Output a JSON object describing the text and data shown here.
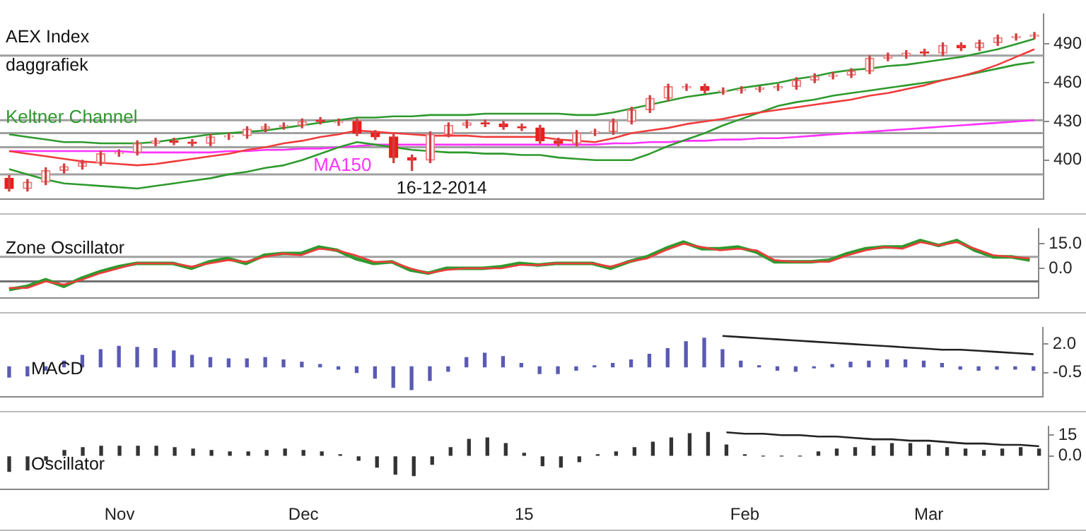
{
  "chart_data": [
    {
      "type": "candlestick",
      "title": "AEX Index",
      "subtitle": "daggrafiek",
      "annotations": [
        "16-12-2014"
      ],
      "categories": [
        null,
        null,
        null,
        null,
        null,
        null,
        null,
        null,
        null,
        null,
        null,
        null,
        null,
        null,
        null,
        null,
        null,
        null,
        null,
        null,
        null,
        null,
        null,
        null,
        null,
        null,
        null,
        null,
        null,
        null,
        null,
        null,
        null,
        null,
        null,
        null,
        null,
        null,
        null,
        null,
        null,
        null,
        null,
        null,
        null,
        null,
        null,
        null,
        null,
        null,
        null,
        null,
        null,
        null,
        null,
        null,
        null
      ],
      "ohlc": [
        [
          386,
          388,
          376,
          378
        ],
        [
          378,
          385,
          376,
          383
        ],
        [
          383,
          394,
          381,
          392
        ],
        [
          392,
          397,
          390,
          395
        ],
        [
          395,
          400,
          393,
          398
        ],
        [
          398,
          407,
          396,
          405
        ],
        [
          405,
          408,
          403,
          406
        ],
        [
          406,
          415,
          404,
          413
        ],
        [
          413,
          417,
          411,
          415
        ],
        [
          415,
          417,
          412,
          414
        ],
        [
          414,
          416,
          411,
          413
        ],
        [
          413,
          420,
          411,
          418
        ],
        [
          418,
          421,
          416,
          419
        ],
        [
          419,
          426,
          417,
          424
        ],
        [
          424,
          428,
          422,
          426
        ],
        [
          426,
          429,
          424,
          427
        ],
        [
          427,
          432,
          425,
          430
        ],
        [
          431,
          433,
          428,
          430
        ],
        [
          429,
          432,
          427,
          430
        ],
        [
          430,
          432,
          419,
          421
        ],
        [
          421,
          423,
          416,
          418
        ],
        [
          418,
          420,
          398,
          402
        ],
        [
          402,
          404,
          392,
          400
        ],
        [
          400,
          422,
          398,
          420
        ],
        [
          420,
          429,
          418,
          427
        ],
        [
          427,
          431,
          425,
          429
        ],
        [
          429,
          431,
          426,
          428
        ],
        [
          428,
          430,
          424,
          426
        ],
        [
          426,
          428,
          423,
          425
        ],
        [
          425,
          427,
          413,
          415
        ],
        [
          415,
          417,
          411,
          413
        ],
        [
          413,
          423,
          411,
          421
        ],
        [
          421,
          424,
          419,
          422
        ],
        [
          422,
          432,
          420,
          430
        ],
        [
          430,
          441,
          428,
          439
        ],
        [
          439,
          450,
          437,
          448
        ],
        [
          448,
          459,
          446,
          457
        ],
        [
          456,
          459,
          454,
          457
        ],
        [
          457,
          459,
          452,
          454
        ],
        [
          453,
          456,
          451,
          454
        ],
        [
          454,
          457,
          452,
          455
        ],
        [
          455,
          457,
          453,
          456
        ],
        [
          456,
          459,
          454,
          457
        ],
        [
          457,
          464,
          455,
          462
        ],
        [
          462,
          467,
          460,
          465
        ],
        [
          465,
          468,
          463,
          466
        ],
        [
          466,
          471,
          464,
          469
        ],
        [
          469,
          481,
          467,
          479
        ],
        [
          479,
          483,
          477,
          481
        ],
        [
          481,
          485,
          479,
          483
        ],
        [
          484,
          486,
          481,
          483
        ],
        [
          483,
          491,
          481,
          489
        ],
        [
          489,
          491,
          485,
          487
        ],
        [
          487,
          493,
          485,
          491
        ],
        [
          491,
          497,
          489,
          495
        ],
        [
          495,
          498,
          493,
          496
        ],
        [
          496,
          499,
          494,
          497
        ]
      ],
      "series": [
        {
          "type": "line",
          "name": "Keltner Channel",
          "color": "#2e9a2e",
          "values": [
            420,
            418,
            416,
            414,
            414,
            413,
            413,
            413,
            414,
            416,
            418,
            420,
            421,
            422,
            423,
            425,
            427,
            429,
            431,
            433,
            433,
            434,
            434,
            435,
            435,
            435,
            436,
            436,
            436,
            436,
            436,
            435,
            435,
            437,
            440,
            443,
            446,
            449,
            451,
            453,
            456,
            458,
            460,
            463,
            465,
            468,
            470,
            471,
            473,
            474,
            476,
            478,
            480,
            483,
            486,
            490,
            494
          ]
        },
        {
          "type": "line",
          "color": "#f03c3c",
          "values": [
            407,
            405,
            403,
            401,
            399,
            398,
            397,
            396,
            397,
            399,
            401,
            403,
            405,
            408,
            410,
            413,
            415,
            418,
            420,
            423,
            422,
            421,
            420,
            419,
            419,
            419,
            418,
            418,
            418,
            418,
            416,
            415,
            414,
            417,
            421,
            423,
            425,
            428,
            430,
            432,
            435,
            437,
            439,
            441,
            443,
            445,
            447,
            450,
            452,
            455,
            458,
            462,
            465,
            469,
            474,
            480,
            486
          ]
        },
        {
          "type": "line",
          "color": "#2e9a2e",
          "values": [
            393,
            389,
            385,
            382,
            381,
            380,
            379,
            378,
            380,
            382,
            384,
            386,
            389,
            391,
            394,
            396,
            400,
            405,
            410,
            414,
            412,
            410,
            408,
            407,
            406,
            406,
            405,
            405,
            404,
            404,
            402,
            401,
            400,
            400,
            400,
            405,
            411,
            416,
            421,
            427,
            432,
            437,
            442,
            445,
            447,
            450,
            452,
            454,
            456,
            458,
            460,
            462,
            465,
            468,
            471,
            474,
            476
          ]
        },
        {
          "type": "line",
          "name": "MA150",
          "color": "#ff33ff",
          "values": [
            407,
            407,
            407,
            407,
            407,
            407,
            407,
            406,
            406,
            406,
            406,
            406,
            407,
            407,
            408,
            408,
            409,
            409,
            410,
            411,
            412,
            412,
            412,
            412,
            412,
            412,
            412,
            412,
            412,
            412,
            412,
            412,
            412,
            413,
            413,
            414,
            414,
            415,
            415,
            416,
            416,
            417,
            417,
            418,
            419,
            420,
            421,
            422,
            423,
            424,
            425,
            426,
            427,
            428,
            429,
            430,
            431
          ]
        }
      ],
      "ref_lines": [
        {
          "axis": "y",
          "value": 481,
          "color": "#a0a0a0"
        },
        {
          "axis": "y",
          "value": 431,
          "color": "#a0a0a0"
        },
        {
          "axis": "y",
          "value": 421,
          "color": "#a0a0a0"
        },
        {
          "axis": "y",
          "value": 410,
          "color": "#a0a0a0"
        },
        {
          "axis": "y",
          "value": 389,
          "color": "#a0a0a0"
        }
      ],
      "ylim": [
        370,
        513
      ],
      "yticks": [
        400,
        430,
        460,
        490
      ],
      "tick_labels": "y",
      "legend": false
    },
    {
      "type": "line",
      "title": "Zone Oscillator",
      "categories": [
        null,
        null,
        null,
        null,
        null,
        null,
        null,
        null,
        null,
        null,
        null,
        null,
        null,
        null,
        null,
        null,
        null,
        null,
        null,
        null,
        null,
        null,
        null,
        null,
        null,
        null,
        null,
        null,
        null,
        null,
        null,
        null,
        null,
        null,
        null,
        null,
        null,
        null,
        null,
        null,
        null,
        null,
        null,
        null,
        null,
        null,
        null,
        null,
        null,
        null,
        null,
        null,
        null,
        null,
        null,
        null,
        null
      ],
      "series": [
        {
          "color": "#2e9a2e",
          "values": [
            -13,
            -11,
            -7,
            -11,
            -6,
            -2,
            1,
            3,
            3,
            3,
            0,
            4,
            6,
            3,
            8,
            9,
            9,
            13,
            11,
            6,
            3,
            4,
            -1,
            -3,
            0,
            0,
            0,
            1,
            3,
            2,
            3,
            3,
            3,
            0,
            4,
            7,
            12,
            16,
            12,
            12,
            13,
            10,
            4,
            4,
            4,
            5,
            9,
            12,
            13,
            13,
            17,
            14,
            17,
            11,
            7,
            7,
            5
          ]
        },
        {
          "color": "#f03c3c",
          "values": [
            -12,
            -12,
            -8,
            -10,
            -7,
            -3,
            0,
            3,
            3,
            3,
            1,
            3,
            5,
            4,
            7,
            9,
            8,
            12,
            11,
            8,
            4,
            4,
            0,
            -3,
            -1,
            0,
            0,
            0,
            2,
            2,
            3,
            3,
            3,
            1,
            4,
            6,
            11,
            15,
            13,
            11,
            12,
            11,
            5,
            4,
            4,
            4,
            8,
            11,
            13,
            12,
            16,
            14,
            16,
            12,
            8,
            7,
            6
          ]
        }
      ],
      "ref_lines": [
        {
          "axis": "y",
          "value": 7,
          "color": "#a0a0a0"
        },
        {
          "axis": "y",
          "value": -8,
          "color": "#707070"
        }
      ],
      "ylim": [
        -18,
        24
      ],
      "yticks": [
        {
          "value": 15,
          "label": "15.0"
        },
        {
          "value": 0,
          "label": "0.0"
        }
      ],
      "tick_labels": "y",
      "legend": false
    },
    {
      "type": "bar",
      "title": "MACD",
      "categories": [
        null,
        null,
        null,
        null,
        null,
        null,
        null,
        null,
        null,
        null,
        null,
        null,
        null,
        null,
        null,
        null,
        null,
        null,
        null,
        null,
        null,
        null,
        null,
        null,
        null,
        null,
        null,
        null,
        null,
        null,
        null,
        null,
        null,
        null,
        null,
        null,
        null,
        null,
        null,
        null,
        null,
        null,
        null,
        null,
        null,
        null,
        null,
        null,
        null,
        null,
        null,
        null,
        null,
        null,
        null,
        null,
        null
      ],
      "series": [
        {
          "color": "#5a5ab4",
          "values": [
            -0.9,
            -0.8,
            -0.3,
            0.5,
            1.0,
            1.5,
            1.8,
            1.7,
            1.6,
            1.4,
            1.0,
            0.8,
            0.7,
            0.7,
            0.8,
            0.6,
            0.4,
            0.2,
            -0.2,
            -0.5,
            -1.0,
            -1.8,
            -2.0,
            -1.2,
            -0.4,
            0.8,
            1.2,
            0.9,
            0.3,
            -0.6,
            -0.6,
            -0.3,
            0.1,
            0.3,
            0.6,
            1.1,
            1.6,
            2.2,
            2.5,
            1.5,
            0.5,
            0.1,
            -0.3,
            -0.4,
            -0.1,
            0.2,
            0.4,
            0.5,
            0.6,
            0.6,
            0.5,
            0.3,
            -0.2,
            -0.3,
            -0.2,
            -0.2,
            -0.3
          ]
        },
        {
          "type": "line",
          "color": "#222222",
          "values": [
            null,
            null,
            null,
            null,
            null,
            null,
            null,
            null,
            null,
            null,
            null,
            null,
            null,
            null,
            null,
            null,
            null,
            null,
            null,
            null,
            null,
            null,
            null,
            null,
            null,
            null,
            null,
            null,
            null,
            null,
            null,
            null,
            null,
            null,
            null,
            null,
            null,
            null,
            null,
            2.7,
            2.6,
            2.5,
            2.4,
            2.3,
            2.2,
            2.1,
            2.0,
            1.9,
            1.8,
            1.7,
            1.6,
            1.5,
            1.5,
            1.4,
            1.3,
            1.2,
            1.1
          ]
        }
      ],
      "ylim": [
        -2.6,
        3.4
      ],
      "yticks": [
        {
          "value": 2,
          "label": "2.0"
        },
        -0.5
      ],
      "tick_labels": "y",
      "legend": false
    },
    {
      "type": "bar",
      "title": "Oscillator",
      "categories": [
        null,
        null,
        null,
        null,
        null,
        null,
        "Nov",
        null,
        null,
        null,
        null,
        null,
        null,
        null,
        null,
        null,
        "Dec",
        null,
        null,
        null,
        null,
        null,
        null,
        null,
        null,
        null,
        null,
        null,
        "15",
        null,
        null,
        null,
        null,
        null,
        null,
        null,
        null,
        null,
        null,
        null,
        "Feb",
        null,
        null,
        null,
        null,
        null,
        null,
        null,
        null,
        null,
        "Mar",
        null,
        null,
        null,
        null,
        null,
        null
      ],
      "series": [
        {
          "color": "#333333",
          "values": [
            -11,
            -10,
            -3,
            4,
            6,
            7,
            7,
            7,
            7,
            6,
            5,
            4,
            3,
            3,
            4,
            5,
            4,
            3,
            1,
            -3,
            -8,
            -13,
            -14,
            -6,
            6,
            12,
            13,
            9,
            2,
            -7,
            -8,
            -4,
            1,
            3,
            6,
            10,
            13,
            16,
            17,
            8,
            1,
            0,
            0,
            0,
            3,
            5,
            6,
            7,
            9,
            9,
            8,
            6,
            5,
            4,
            5,
            6,
            5
          ]
        },
        {
          "type": "line",
          "color": "#222222",
          "values": [
            null,
            null,
            null,
            null,
            null,
            null,
            null,
            null,
            null,
            null,
            null,
            null,
            null,
            null,
            null,
            null,
            null,
            null,
            null,
            null,
            null,
            null,
            null,
            null,
            null,
            null,
            null,
            null,
            null,
            null,
            null,
            null,
            null,
            null,
            null,
            null,
            null,
            null,
            null,
            17,
            16,
            16,
            15,
            15,
            14,
            14,
            13,
            12,
            12,
            11,
            11,
            10,
            9,
            9,
            8,
            8,
            7
          ]
        }
      ],
      "ylim": [
        -24,
        21
      ],
      "yticks": [
        15,
        {
          "value": 0,
          "label": "0.0"
        }
      ],
      "legend": false
    }
  ]
}
